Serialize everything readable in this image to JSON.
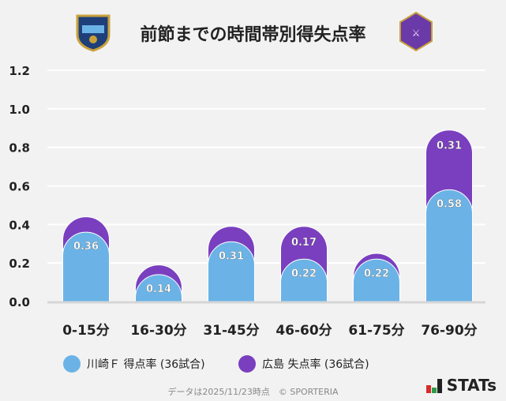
{
  "title": "前節までの時間帯別得失点率",
  "chart_data": {
    "type": "bar",
    "stacked": true,
    "categories": [
      "0-15分",
      "16-30分",
      "31-45分",
      "46-60分",
      "61-75分",
      "76-90分"
    ],
    "series": [
      {
        "name": "川崎Ｆ 得点率 (36試合)",
        "color": "#6bb3e6",
        "values": [
          0.36,
          0.14,
          0.31,
          0.22,
          0.22,
          0.58
        ],
        "labels": [
          "0.36",
          "0.14",
          "0.31",
          "0.22",
          "0.22",
          "0.58"
        ]
      },
      {
        "name": "広島 失点率 (36試合)",
        "color": "#7a3fbf",
        "values": [
          0.08,
          0.05,
          0.08,
          0.17,
          0.03,
          0.31
        ],
        "labels": [
          "",
          "",
          "",
          "0.17",
          "",
          "0.31"
        ]
      }
    ],
    "ylim": [
      0,
      1.2
    ],
    "yticks": [
      "0.0",
      "0.2",
      "0.4",
      "0.6",
      "0.8",
      "1.0",
      "1.2"
    ],
    "grid": true,
    "legend": "bottom"
  },
  "footer": "データは2025/11/23時点　© SPORTERIA",
  "brand": "STATs"
}
